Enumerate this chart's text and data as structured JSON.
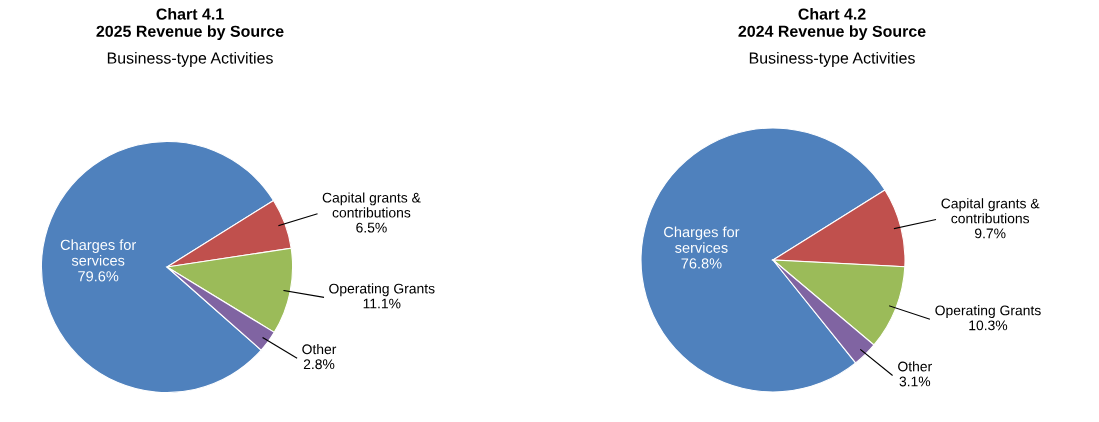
{
  "chart_data": [
    {
      "type": "pie",
      "title": "Chart 4.1\n2025 Revenue by Source",
      "subtitle": "Business-type Activities",
      "categories": [
        "Charges for\nservices",
        "Capital grants &\ncontributions",
        "Operating Grants",
        "Other"
      ],
      "values": [
        79.6,
        6.5,
        11.1,
        2.8
      ],
      "value_labels": [
        "79.6%",
        "6.5%",
        "11.1%",
        "2.8%"
      ],
      "colors": [
        "#4f81bd",
        "#c0504d",
        "#9bbb59",
        "#8064a2"
      ]
    },
    {
      "type": "pie",
      "title": "Chart 4.2\n2024 Revenue by Source",
      "subtitle": "Business-type Activities",
      "categories": [
        "Charges for\nservices",
        "Capital grants &\ncontributions",
        "Operating Grants",
        "Other"
      ],
      "values": [
        76.8,
        9.7,
        10.3,
        3.1
      ],
      "value_labels": [
        "76.8%",
        "9.7%",
        "10.3%",
        "3.1%"
      ],
      "colors": [
        "#4f81bd",
        "#c0504d",
        "#9bbb59",
        "#8064a2"
      ]
    }
  ]
}
